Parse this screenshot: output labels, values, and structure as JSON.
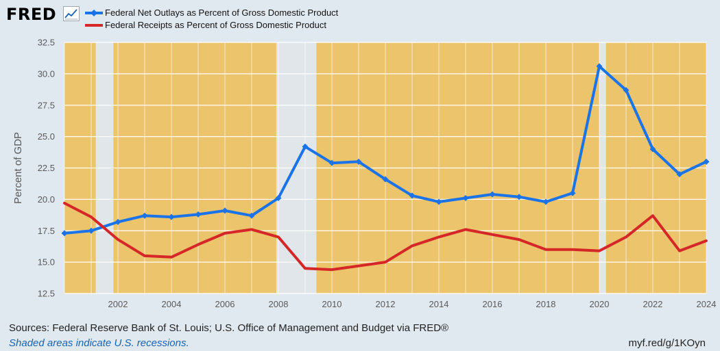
{
  "header": {
    "logo_text": "FRED",
    "logo_icon": "line-chart-icon"
  },
  "legend": [
    {
      "label": "Federal Net Outlays as Percent of Gross Domestic Product",
      "color": "#1a73e8",
      "marker": "diamond"
    },
    {
      "label": "Federal Receipts as Percent of Gross Domestic Product",
      "color": "#d62728",
      "marker": "none"
    }
  ],
  "chart_data": {
    "type": "line",
    "ylabel": "Percent of GDP",
    "xlabel": "",
    "ylim": [
      12.5,
      32.5
    ],
    "yticks": [
      "12.5",
      "15.0",
      "17.5",
      "20.0",
      "22.5",
      "25.0",
      "27.5",
      "30.0",
      "32.5"
    ],
    "xlim": [
      2000,
      2024
    ],
    "xticks": [
      "2002",
      "2004",
      "2006",
      "2008",
      "2010",
      "2012",
      "2014",
      "2016",
      "2018",
      "2020",
      "2022",
      "2024"
    ],
    "grid": true,
    "plot_background": "#ebc46b",
    "recession_color": "#e1e6ea",
    "recessions": [
      {
        "start": 2001.17,
        "end": 2001.83
      },
      {
        "start": 2007.92,
        "end": 2009.42
      },
      {
        "start": 2020.0,
        "end": 2020.25
      }
    ],
    "x": [
      2000,
      2001,
      2002,
      2003,
      2004,
      2005,
      2006,
      2007,
      2008,
      2009,
      2010,
      2011,
      2012,
      2013,
      2014,
      2015,
      2016,
      2017,
      2018,
      2019,
      2020,
      2021,
      2022,
      2023,
      2024
    ],
    "series": [
      {
        "name": "Federal Net Outlays as Percent of Gross Domestic Product",
        "color": "#1a73e8",
        "values": [
          17.3,
          17.5,
          18.2,
          18.7,
          18.6,
          18.8,
          19.1,
          18.7,
          20.1,
          24.2,
          22.9,
          23.0,
          21.6,
          20.3,
          19.8,
          20.1,
          20.4,
          20.2,
          19.8,
          20.5,
          30.6,
          28.7,
          24.0,
          22.0,
          23.0
        ]
      },
      {
        "name": "Federal Receipts as Percent of Gross Domestic Product",
        "color": "#d62728",
        "values": [
          19.7,
          18.6,
          16.8,
          15.5,
          15.4,
          16.4,
          17.3,
          17.6,
          17.0,
          14.5,
          14.4,
          14.7,
          15.0,
          16.3,
          17.0,
          17.6,
          17.2,
          16.8,
          16.0,
          16.0,
          15.9,
          17.0,
          18.7,
          15.9,
          16.7
        ]
      }
    ]
  },
  "footer": {
    "source": "Sources: Federal Reserve Bank of St. Louis; U.S. Office of Management and Budget via FRED®",
    "note": "Shaded areas indicate U.S. recessions.",
    "link": "myf.red/g/1KOyn"
  }
}
